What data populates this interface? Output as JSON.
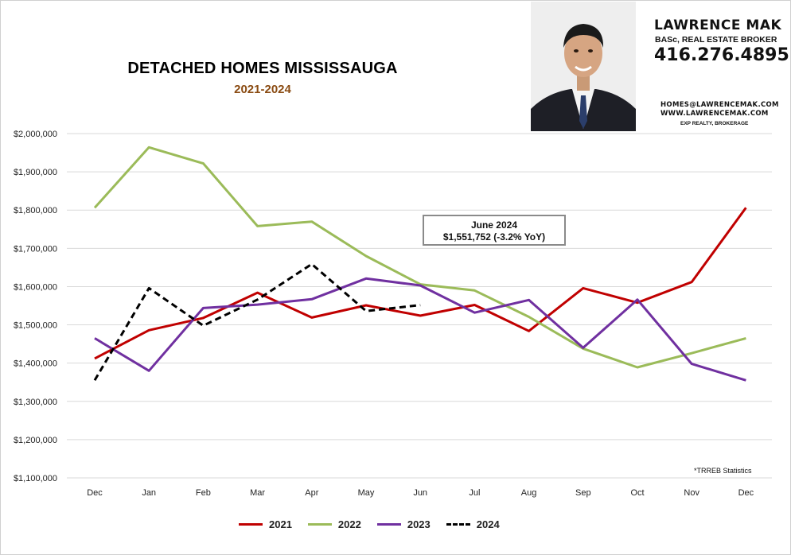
{
  "title": "DETACHED HOMES MISSISSAUGA",
  "subtitle": "2021-2024",
  "agent": {
    "name": "LAWRENCE MAK",
    "credentials": "BASc, REAL ESTATE BROKER",
    "phone": "416.276.4895",
    "email": "HOMES@LAWRENCEMAK.COM",
    "website": "WWW.LAWRENCEMAK.COM",
    "brokerage": "EXP REALTY, BROKERAGE"
  },
  "callout": {
    "line1": "June 2024",
    "line2": "$1,551,752  (-3.2%  YoY)"
  },
  "source_note": "*TRREB Statistics",
  "colors": {
    "2021": "#c00000",
    "2022": "#9bbb59",
    "2023": "#7030a0",
    "2024": "#000000",
    "grid": "#d9d9d9",
    "title_accent": "#8a4b12"
  },
  "chart_data": {
    "type": "line",
    "categories": [
      "Dec",
      "Jan",
      "Feb",
      "Mar",
      "Apr",
      "May",
      "Jun",
      "Jul",
      "Aug",
      "Sep",
      "Oct",
      "Nov",
      "Dec"
    ],
    "ylim": [
      1100000,
      2000000
    ],
    "yticks": [
      1100000,
      1200000,
      1300000,
      1400000,
      1500000,
      1600000,
      1700000,
      1800000,
      1900000,
      2000000
    ],
    "ytick_labels": [
      "$1,100,000",
      "$1,200,000",
      "$1,300,000",
      "$1,400,000",
      "$1,500,000",
      "$1,600,000",
      "$1,700,000",
      "$1,800,000",
      "$1,900,000",
      "$2,000,000"
    ],
    "grid": true,
    "legend_position": "bottom",
    "series": [
      {
        "name": "2021",
        "style": "solid",
        "values": [
          1412000,
          1486000,
          1518000,
          1584000,
          1519000,
          1551000,
          1524000,
          1552000,
          1484000,
          1596000,
          1558000,
          1612000,
          1806000
        ]
      },
      {
        "name": "2022",
        "style": "solid",
        "values": [
          1806000,
          1964000,
          1922000,
          1758000,
          1770000,
          1680000,
          1606000,
          1590000,
          1521000,
          1438000,
          1389000,
          1426000,
          1465000
        ]
      },
      {
        "name": "2023",
        "style": "solid",
        "values": [
          1465000,
          1380000,
          1544000,
          1553000,
          1567000,
          1621000,
          1603000,
          1532000,
          1565000,
          1440000,
          1566000,
          1398000,
          1355000
        ]
      },
      {
        "name": "2024",
        "style": "dashed",
        "values": [
          1355000,
          1596000,
          1498000,
          1566000,
          1659000,
          1536000,
          1551752,
          null,
          null,
          null,
          null,
          null,
          null
        ]
      }
    ]
  }
}
